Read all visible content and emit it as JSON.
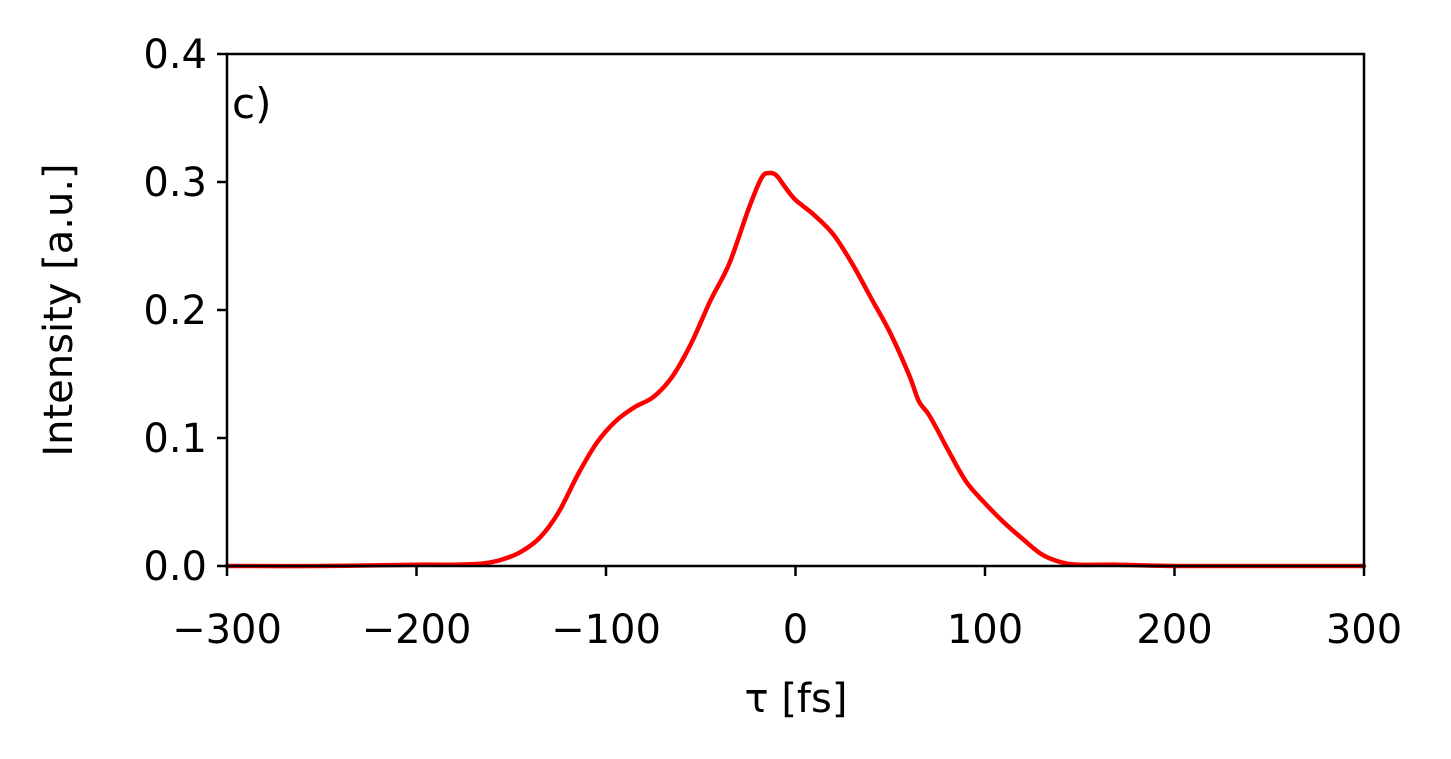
{
  "chart_data": {
    "type": "line",
    "panel_label": "c)",
    "xlabel": "τ [fs]",
    "ylabel": "Intensity [a.u.]",
    "xlim": [
      -300,
      300
    ],
    "ylim": [
      0.0,
      0.4
    ],
    "xticks": [
      -300,
      -200,
      -100,
      0,
      100,
      200,
      300
    ],
    "xtick_labels": [
      "−300",
      "−200",
      "−100",
      "0",
      "100",
      "200",
      "300"
    ],
    "yticks": [
      0.0,
      0.1,
      0.2,
      0.3,
      0.4
    ],
    "ytick_labels": [
      "0.0",
      "0.1",
      "0.2",
      "0.3",
      "0.4"
    ],
    "grid": false,
    "series": [
      {
        "color": "#ff0000",
        "x": [
          -300,
          -250,
          -200,
          -180,
          -165,
          -155,
          -145,
          -135,
          -125,
          -115,
          -105,
          -95,
          -85,
          -75,
          -65,
          -55,
          -45,
          -35,
          -25,
          -18,
          -14,
          -10,
          -5,
          0,
          10,
          20,
          30,
          40,
          50,
          60,
          65,
          70,
          75,
          80,
          90,
          100,
          110,
          120,
          130,
          140,
          150,
          170,
          200,
          250,
          300
        ],
        "y": [
          0.0,
          0.0,
          0.001,
          0.001,
          0.002,
          0.005,
          0.011,
          0.022,
          0.042,
          0.071,
          0.096,
          0.113,
          0.124,
          0.132,
          0.148,
          0.174,
          0.207,
          0.236,
          0.278,
          0.303,
          0.307,
          0.305,
          0.295,
          0.286,
          0.274,
          0.259,
          0.236,
          0.209,
          0.182,
          0.149,
          0.129,
          0.119,
          0.106,
          0.092,
          0.066,
          0.049,
          0.034,
          0.021,
          0.009,
          0.003,
          0.001,
          0.001,
          0.0,
          0.0,
          0.0
        ]
      }
    ]
  }
}
